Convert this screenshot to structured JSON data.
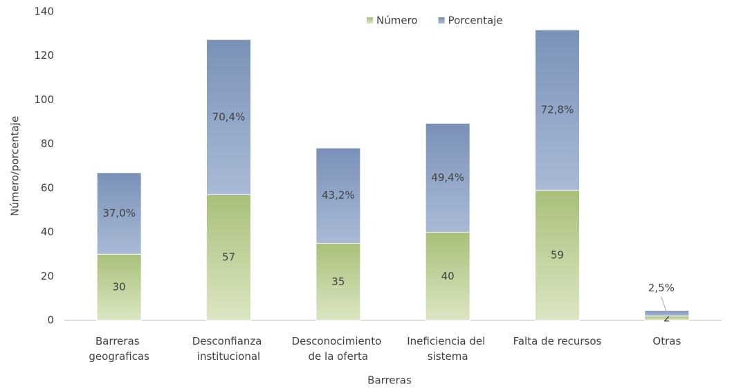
{
  "chart_data": {
    "type": "stacked_bar",
    "xlabel": "Barreras",
    "ylabel": "Número/porcentaje",
    "categories": [
      "Barreras geograficas",
      "Desconfianza institucional",
      "Desconocimiento de la oferta",
      "Ineficiencia del sistema",
      "Falta de recursos",
      "Otras"
    ],
    "series": [
      {
        "name": "Número",
        "color": "#b7cc8c",
        "values": [
          30,
          57,
          35,
          40,
          59,
          2
        ]
      },
      {
        "name": "Porcentaje",
        "color": "#8a9fc2",
        "values": [
          37.0,
          70.4,
          43.2,
          49.4,
          72.8,
          2.5
        ],
        "value_labels": [
          "37,0%",
          "70,4%",
          "43,2%",
          "49,4%",
          "72,8%",
          "2,5%"
        ]
      }
    ],
    "ylim": [
      0,
      140
    ],
    "yticks": [
      0,
      20,
      40,
      60,
      80,
      100,
      120,
      140
    ],
    "grid": false,
    "legend": "top"
  }
}
